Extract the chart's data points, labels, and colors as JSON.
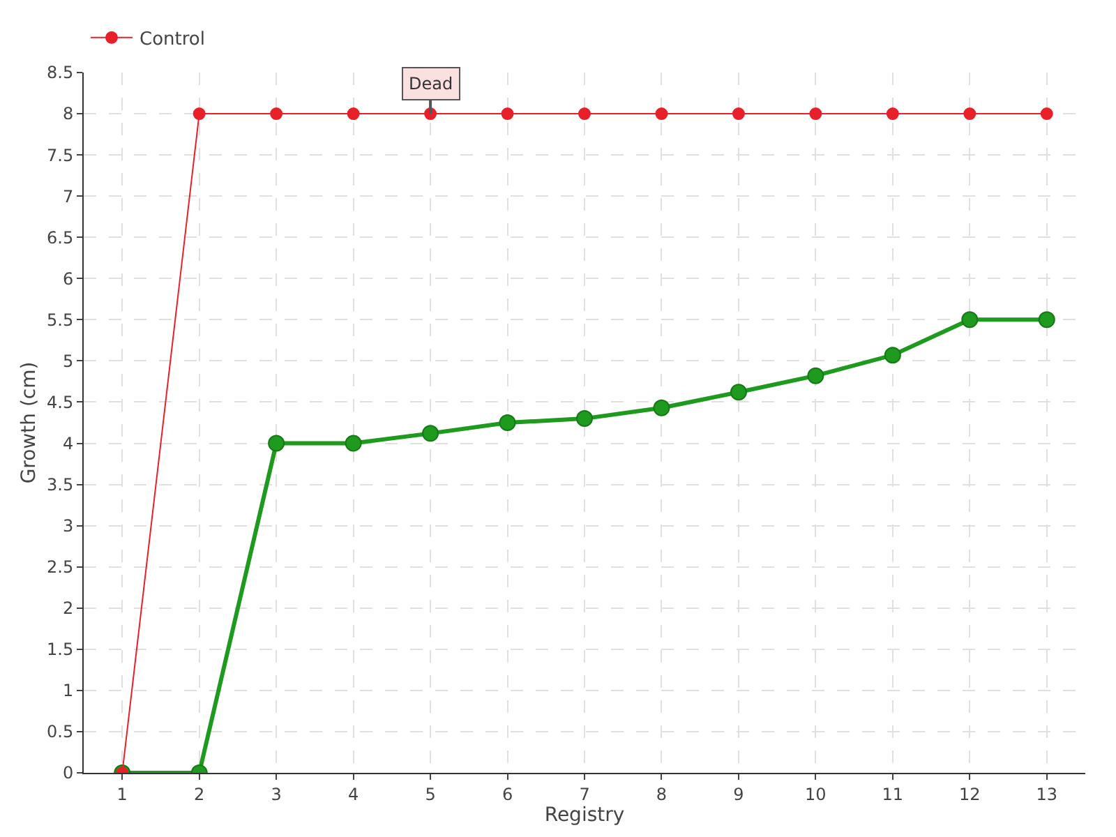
{
  "chart_data": {
    "type": "line",
    "xlabel": "Registry",
    "ylabel": "Growth (cm)",
    "x": [
      1,
      2,
      3,
      4,
      5,
      6,
      7,
      8,
      9,
      10,
      11,
      12,
      13
    ],
    "series": [
      {
        "color": "#1e9a1e",
        "values": [
          0,
          0,
          4,
          4,
          4.12,
          4.25,
          4.3,
          4.43,
          4.62,
          4.82,
          5.07,
          5.5,
          5.5
        ]
      },
      {
        "name": "Control",
        "color": "#e8202a",
        "values": [
          0,
          8,
          8,
          8,
          8,
          8,
          8,
          8,
          8,
          8,
          8,
          8,
          8
        ]
      }
    ],
    "xlim": [
      0.5,
      13.5
    ],
    "xticks": [
      1,
      2,
      3,
      4,
      5,
      6,
      7,
      8,
      9,
      10,
      11,
      12,
      13
    ],
    "ylim": [
      0,
      8.5
    ],
    "yticks": [
      0,
      0.5,
      1,
      1.5,
      2,
      2.5,
      3,
      3.5,
      4,
      4.5,
      5,
      5.5,
      6,
      6.5,
      7,
      7.5,
      8,
      8.5
    ],
    "annotations": [
      {
        "text": "Dead",
        "x": 5,
        "y": 8
      }
    ],
    "grid": true,
    "legend": "top left",
    "marker": "circle",
    "line_style": "solid"
  }
}
